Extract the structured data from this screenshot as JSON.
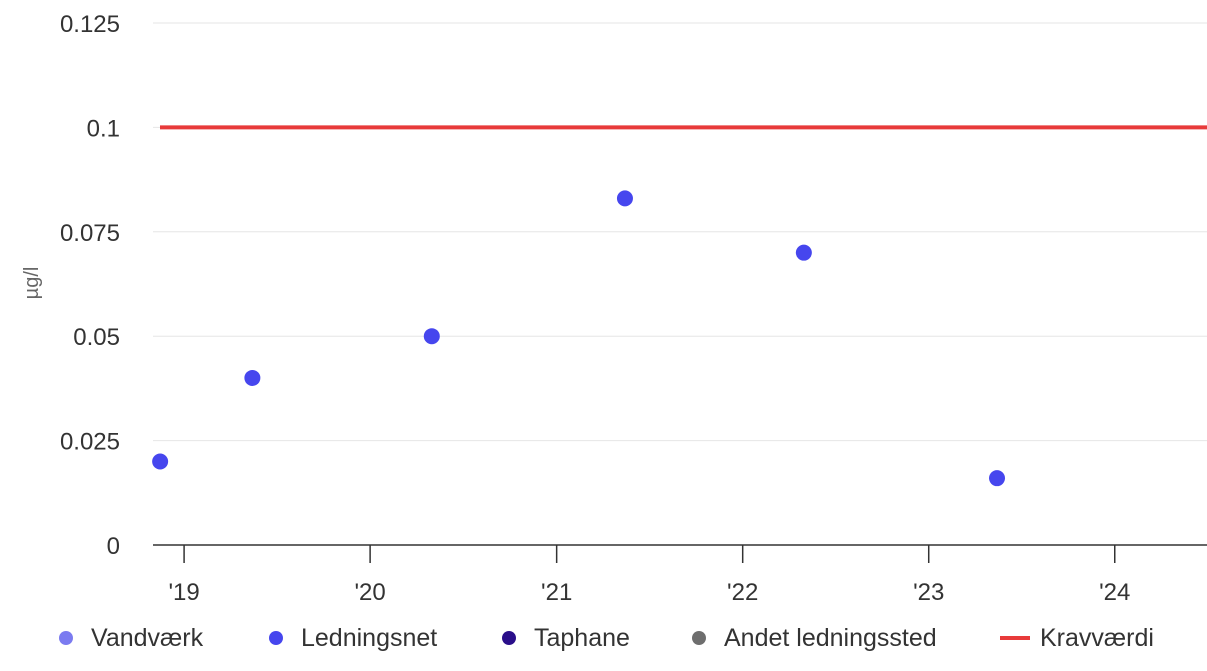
{
  "chart_data": {
    "type": "scatter",
    "ylabel": "µg/l",
    "ylim": [
      0,
      0.125
    ],
    "yticks": [
      0,
      0.025,
      0.05,
      0.075,
      0.1,
      0.125
    ],
    "ytick_labels": [
      "0",
      "0.025",
      "0.05",
      "0.075",
      "0.1",
      "0.125"
    ],
    "xlim": [
      "2018-11-01",
      "2024-06-30"
    ],
    "xticks": [
      "2019-01-01",
      "2020-01-01",
      "2021-01-01",
      "2022-01-01",
      "2023-01-01",
      "2024-01-01"
    ],
    "xtick_labels": [
      "'19",
      "'20",
      "'21",
      "'22",
      "'23",
      "'24"
    ],
    "grid": true,
    "legend_position": "bottom",
    "series": [
      {
        "name": "Vandværk",
        "color": "#7b7bf0",
        "points": []
      },
      {
        "name": "Ledningsnet",
        "color": "#4646ee",
        "points": [
          {
            "x": "2018-11-15",
            "y": 0.02
          },
          {
            "x": "2019-05-15",
            "y": 0.04
          },
          {
            "x": "2020-05-01",
            "y": 0.05
          },
          {
            "x": "2021-05-15",
            "y": 0.083
          },
          {
            "x": "2022-05-01",
            "y": 0.07
          },
          {
            "x": "2023-05-15",
            "y": 0.016
          }
        ]
      },
      {
        "name": "Taphane",
        "color": "#2a0e8a",
        "points": []
      },
      {
        "name": "Andet ledningssted",
        "color": "#6e6e6e",
        "points": []
      }
    ],
    "reference_line": {
      "name": "Kravværdi",
      "y": 0.1,
      "color": "#e83a3a"
    }
  }
}
